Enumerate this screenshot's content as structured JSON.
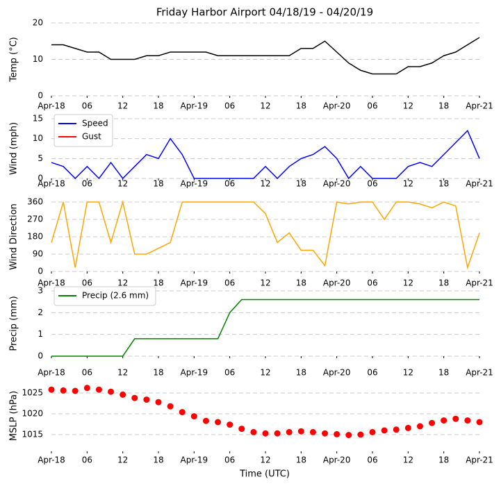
{
  "chart_data": [
    {
      "type": "line",
      "title": "Friday Harbor Airport 04/18/19 - 04/20/19",
      "y_label": "Temp (°C)",
      "x": [
        0,
        2,
        4,
        6,
        8,
        10,
        12,
        14,
        16,
        18,
        20,
        22,
        24,
        26,
        28,
        30,
        32,
        34,
        36,
        38,
        40,
        42,
        44,
        46,
        48,
        50,
        52,
        54,
        56,
        58,
        60,
        62,
        64,
        66,
        68,
        70,
        72
      ],
      "series": [
        {
          "name": "Temp",
          "color": "#000000",
          "values": [
            14,
            14,
            13,
            12,
            12,
            10,
            10,
            10,
            11,
            11,
            12,
            12,
            12,
            12,
            11,
            11,
            11,
            11,
            11,
            11,
            11,
            13,
            13,
            15,
            12,
            9,
            7,
            6,
            6,
            6,
            8,
            8,
            9,
            11,
            12,
            14,
            16
          ]
        }
      ],
      "xlim": [
        0,
        72
      ],
      "xticks": [
        {
          "value": 0,
          "label": "Apr-18"
        },
        {
          "value": 6,
          "label": "06"
        },
        {
          "value": 12,
          "label": "12"
        },
        {
          "value": 18,
          "label": "18"
        },
        {
          "value": 24,
          "label": "Apr-19"
        },
        {
          "value": 30,
          "label": "06"
        },
        {
          "value": 36,
          "label": "12"
        },
        {
          "value": 42,
          "label": "18"
        },
        {
          "value": 48,
          "label": "Apr-20"
        },
        {
          "value": 54,
          "label": "06"
        },
        {
          "value": 60,
          "label": "12"
        },
        {
          "value": 66,
          "label": "18"
        },
        {
          "value": 72,
          "label": "Apr-21"
        }
      ],
      "ylim": [
        0,
        20
      ],
      "yticks": [
        0,
        10,
        20
      ],
      "grid": true
    },
    {
      "type": "line",
      "y_label": "Wind (mph)",
      "x": [
        0,
        2,
        4,
        6,
        8,
        10,
        12,
        14,
        16,
        18,
        20,
        22,
        24,
        26,
        28,
        30,
        32,
        34,
        36,
        38,
        40,
        42,
        44,
        46,
        48,
        50,
        52,
        54,
        56,
        58,
        60,
        62,
        64,
        66,
        68,
        70,
        72
      ],
      "series": [
        {
          "name": "Speed",
          "color": "#0000ff",
          "values": [
            4,
            3,
            0,
            3,
            0,
            4,
            0,
            3,
            6,
            5,
            10,
            6,
            0,
            0,
            0,
            0,
            0,
            0,
            3,
            0,
            3,
            5,
            6,
            8,
            5,
            0,
            3,
            0,
            0,
            0,
            3,
            4,
            3,
            6,
            9,
            12,
            5
          ]
        },
        {
          "name": "Gust",
          "color": "#ff0000",
          "values": [
            null,
            null,
            null,
            null,
            null,
            null,
            null,
            null,
            null,
            null,
            null,
            null,
            null,
            null,
            null,
            null,
            null,
            null,
            null,
            null,
            null,
            null,
            null,
            null,
            null,
            null,
            null,
            null,
            null,
            null,
            null,
            null,
            null,
            null,
            null,
            null,
            null
          ]
        }
      ],
      "xlim": [
        0,
        72
      ],
      "xticks": [
        {
          "value": 0,
          "label": "Apr-18"
        },
        {
          "value": 6,
          "label": "06"
        },
        {
          "value": 12,
          "label": "12"
        },
        {
          "value": 18,
          "label": "18"
        },
        {
          "value": 24,
          "label": "Apr-19"
        },
        {
          "value": 30,
          "label": "06"
        },
        {
          "value": 36,
          "label": "12"
        },
        {
          "value": 42,
          "label": "18"
        },
        {
          "value": 48,
          "label": "Apr-20"
        },
        {
          "value": 54,
          "label": "06"
        },
        {
          "value": 60,
          "label": "12"
        },
        {
          "value": 66,
          "label": "18"
        },
        {
          "value": 72,
          "label": "Apr-21"
        }
      ],
      "ylim": [
        0,
        15
      ],
      "yticks": [
        0,
        5,
        10,
        15
      ],
      "grid": true,
      "legend": "upper left"
    },
    {
      "type": "line",
      "y_label": "Wind Direction",
      "x": [
        0,
        2,
        4,
        6,
        8,
        10,
        12,
        14,
        16,
        18,
        20,
        22,
        24,
        26,
        28,
        30,
        32,
        34,
        36,
        38,
        40,
        42,
        44,
        46,
        48,
        50,
        52,
        54,
        56,
        58,
        60,
        62,
        64,
        66,
        68,
        70,
        72
      ],
      "series": [
        {
          "name": "Direction",
          "color": "#ffa500",
          "values": [
            150,
            360,
            20,
            360,
            360,
            150,
            360,
            90,
            90,
            120,
            150,
            360,
            360,
            360,
            360,
            360,
            360,
            360,
            300,
            150,
            200,
            110,
            110,
            30,
            360,
            350,
            360,
            360,
            270,
            360,
            360,
            350,
            330,
            360,
            340,
            20,
            200
          ]
        }
      ],
      "xlim": [
        0,
        72
      ],
      "xticks": [
        {
          "value": 0,
          "label": "Apr-18"
        },
        {
          "value": 6,
          "label": "06"
        },
        {
          "value": 12,
          "label": "12"
        },
        {
          "value": 18,
          "label": "18"
        },
        {
          "value": 24,
          "label": "Apr-19"
        },
        {
          "value": 30,
          "label": "06"
        },
        {
          "value": 36,
          "label": "12"
        },
        {
          "value": 42,
          "label": "18"
        },
        {
          "value": 48,
          "label": "Apr-20"
        },
        {
          "value": 54,
          "label": "06"
        },
        {
          "value": 60,
          "label": "12"
        },
        {
          "value": 66,
          "label": "18"
        },
        {
          "value": 72,
          "label": "Apr-21"
        }
      ],
      "ylim": [
        0,
        360
      ],
      "yticks": [
        0,
        90,
        180,
        270,
        360
      ],
      "grid": true
    },
    {
      "type": "line",
      "y_label": "Precip (mm)",
      "x": [
        0,
        2,
        4,
        6,
        8,
        10,
        12,
        14,
        16,
        18,
        20,
        22,
        24,
        26,
        28,
        30,
        32,
        34,
        36,
        38,
        40,
        42,
        44,
        46,
        48,
        50,
        52,
        54,
        56,
        58,
        60,
        62,
        64,
        66,
        68,
        70,
        72
      ],
      "series": [
        {
          "name": "Precip (2.6 mm)",
          "color": "#008000",
          "values": [
            0,
            0,
            0,
            0,
            0,
            0,
            0,
            0.8,
            0.8,
            0.8,
            0.8,
            0.8,
            0.8,
            0.8,
            0.8,
            2.0,
            2.6,
            2.6,
            2.6,
            2.6,
            2.6,
            2.6,
            2.6,
            2.6,
            2.6,
            2.6,
            2.6,
            2.6,
            2.6,
            2.6,
            2.6,
            2.6,
            2.6,
            2.6,
            2.6,
            2.6,
            2.6
          ]
        }
      ],
      "xlim": [
        0,
        72
      ],
      "xticks": [
        {
          "value": 0,
          "label": "Apr-18"
        },
        {
          "value": 6,
          "label": "06"
        },
        {
          "value": 12,
          "label": "12"
        },
        {
          "value": 18,
          "label": "18"
        },
        {
          "value": 24,
          "label": "Apr-19"
        },
        {
          "value": 30,
          "label": "06"
        },
        {
          "value": 36,
          "label": "12"
        },
        {
          "value": 42,
          "label": "18"
        },
        {
          "value": 48,
          "label": "Apr-20"
        },
        {
          "value": 54,
          "label": "06"
        },
        {
          "value": 60,
          "label": "12"
        },
        {
          "value": 66,
          "label": "18"
        },
        {
          "value": 72,
          "label": "Apr-21"
        }
      ],
      "ylim": [
        0,
        3
      ],
      "yticks": [
        0,
        1,
        2,
        3
      ],
      "grid": true,
      "legend": "upper left"
    },
    {
      "type": "scatter",
      "y_label": "MSLP (hPa)",
      "x_label": "Time (UTC)",
      "x": [
        0,
        2,
        4,
        6,
        8,
        10,
        12,
        14,
        16,
        18,
        20,
        22,
        24,
        26,
        28,
        30,
        32,
        34,
        36,
        38,
        40,
        42,
        44,
        46,
        48,
        50,
        52,
        54,
        56,
        58,
        60,
        62,
        64,
        66,
        68,
        70,
        72
      ],
      "series": [
        {
          "name": "MSLP",
          "color": "#ff0000",
          "values": [
            1025.8,
            1025.6,
            1025.5,
            1026.2,
            1025.8,
            1025.3,
            1024.6,
            1023.8,
            1023.4,
            1022.8,
            1021.8,
            1020.4,
            1019.4,
            1018.3,
            1018.0,
            1017.4,
            1016.4,
            1015.6,
            1015.3,
            1015.3,
            1015.6,
            1015.8,
            1015.6,
            1015.3,
            1015.1,
            1014.9,
            1015.0,
            1015.6,
            1016.0,
            1016.2,
            1016.6,
            1017.0,
            1017.8,
            1018.4,
            1018.8,
            1018.4,
            1018.0
          ]
        }
      ],
      "xlim": [
        0,
        72
      ],
      "xticks": [
        {
          "value": 0,
          "label": "Apr-18"
        },
        {
          "value": 6,
          "label": "06"
        },
        {
          "value": 12,
          "label": "12"
        },
        {
          "value": 18,
          "label": "18"
        },
        {
          "value": 24,
          "label": "Apr-19"
        },
        {
          "value": 30,
          "label": "06"
        },
        {
          "value": 36,
          "label": "12"
        },
        {
          "value": 42,
          "label": "18"
        },
        {
          "value": 48,
          "label": "Apr-20"
        },
        {
          "value": 54,
          "label": "06"
        },
        {
          "value": 60,
          "label": "12"
        },
        {
          "value": 66,
          "label": "18"
        },
        {
          "value": 72,
          "label": "Apr-21"
        }
      ],
      "ylim": [
        1011,
        1028
      ],
      "yticks": [
        1015,
        1020,
        1025
      ],
      "grid": true
    }
  ]
}
